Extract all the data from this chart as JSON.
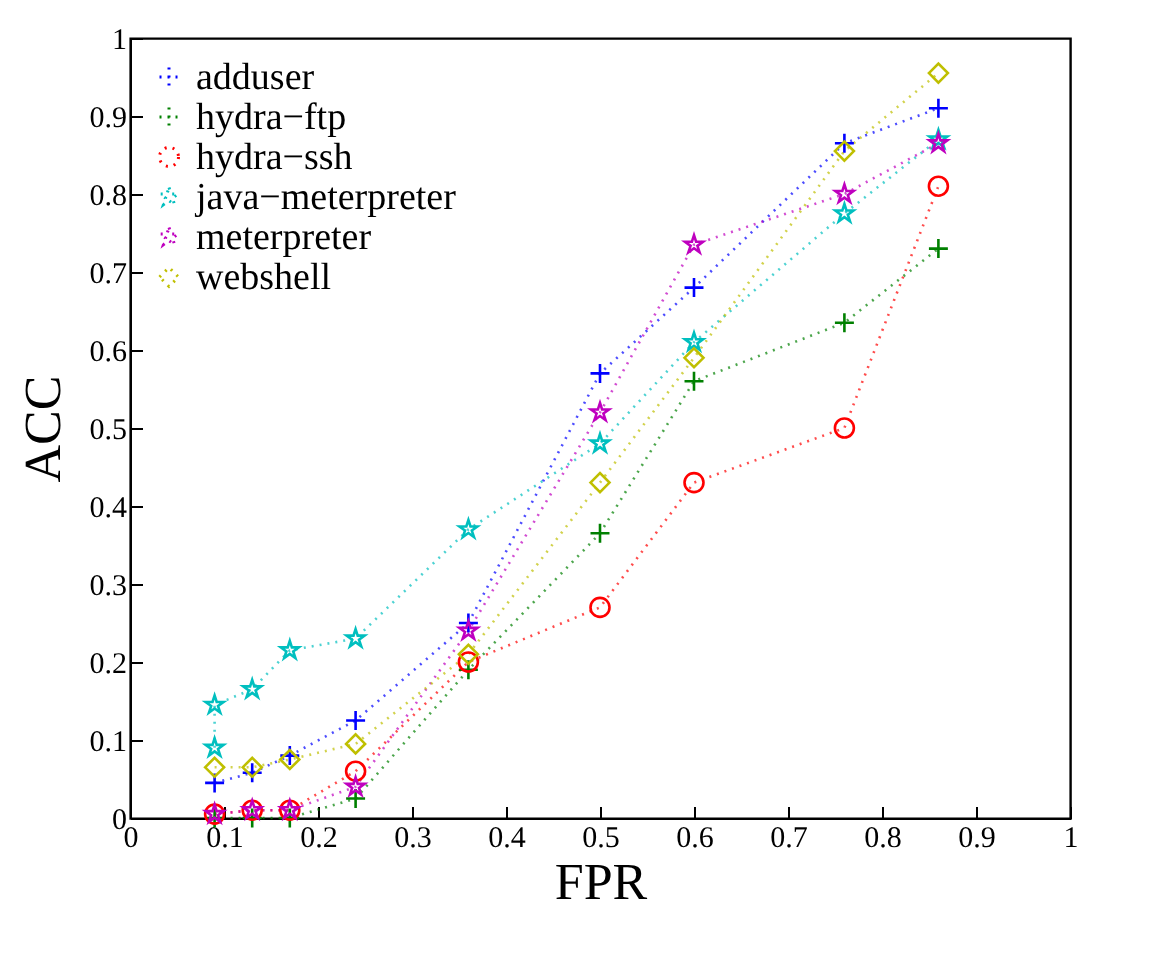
{
  "chart_data": {
    "type": "line",
    "xlabel": "FPR",
    "ylabel": "ACC",
    "xlim": [
      0,
      1
    ],
    "ylim": [
      0,
      1
    ],
    "xticks": [
      0,
      0.1,
      0.2,
      0.3,
      0.4,
      0.5,
      0.6,
      0.7,
      0.8,
      0.9,
      1
    ],
    "yticks": [
      0,
      0.1,
      0.2,
      0.3,
      0.4,
      0.5,
      0.6,
      0.7,
      0.8,
      0.9,
      1
    ],
    "grid": false,
    "legend": "top left",
    "line_style": "dotted",
    "x": [
      0.09,
      0.13,
      0.17,
      0.24,
      0.36,
      0.5,
      0.6,
      0.76,
      0.86
    ],
    "series": [
      {
        "name": "adduser",
        "color": "#0000ff",
        "marker": "cross",
        "values": [
          0.045,
          0.058,
          0.08,
          0.125,
          0.25,
          0.57,
          0.68,
          0.865,
          0.91
        ]
      },
      {
        "name": "hydra−ftp",
        "color": "#008000",
        "marker": "cross",
        "values": [
          0,
          0,
          0,
          0.025,
          0.19,
          0.365,
          0.56,
          0.635,
          0.73
        ]
      },
      {
        "name": "hydra−ssh",
        "color": "#ff0000",
        "marker": "circle",
        "values": [
          0.005,
          0.01,
          0.01,
          0.06,
          0.2,
          0.27,
          0.43,
          0.5,
          0.81
        ]
      },
      {
        "name": "java−meterpreter",
        "color": "#00bfbf",
        "marker": "star",
        "x": [
          0.09,
          0.09,
          0.13,
          0.17,
          0.24,
          0.36,
          0.5,
          0.6,
          0.76,
          0.86
        ],
        "values": [
          0.09,
          0.145,
          0.165,
          0.215,
          0.23,
          0.37,
          0.48,
          0.61,
          0.775,
          0.87
        ]
      },
      {
        "name": "meterpreter",
        "color": "#bf00bf",
        "marker": "star",
        "values": [
          0.005,
          0.01,
          0.01,
          0.04,
          0.24,
          0.52,
          0.735,
          0.8,
          0.865
        ]
      },
      {
        "name": "webshell",
        "color": "#bfbf00",
        "marker": "diamond",
        "values": [
          0.065,
          0.065,
          0.075,
          0.095,
          0.21,
          0.43,
          0.59,
          0.855,
          0.955
        ]
      }
    ]
  }
}
